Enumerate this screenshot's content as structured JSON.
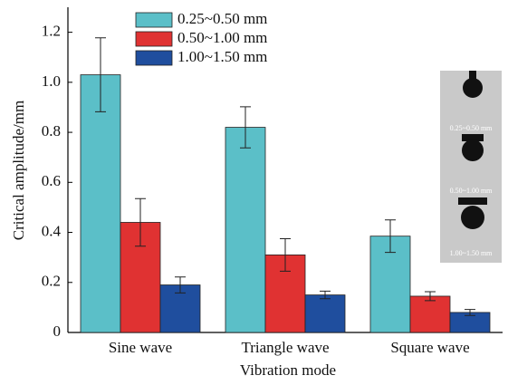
{
  "chart_data": {
    "type": "bar",
    "xlabel": "Vibration mode",
    "ylabel": "Critical amplitude/mm",
    "categories": [
      "Sine wave",
      "Triangle wave",
      "Square wave"
    ],
    "series": [
      {
        "name": "0.25~0.50 mm",
        "color": "#5bbfc8",
        "values": [
          1.03,
          0.82,
          0.385
        ],
        "errors": [
          0.148,
          0.082,
          0.065
        ]
      },
      {
        "name": "0.50~1.00 mm",
        "color": "#e03232",
        "values": [
          0.44,
          0.31,
          0.145
        ],
        "errors": [
          0.095,
          0.065,
          0.018
        ]
      },
      {
        "name": "1.00~1.50 mm",
        "color": "#1f4e9e",
        "values": [
          0.19,
          0.15,
          0.08
        ],
        "errors": [
          0.032,
          0.015,
          0.012
        ]
      }
    ],
    "ylim": [
      0,
      1.3
    ],
    "yticks": [
      0,
      0.2,
      0.4,
      0.6,
      0.8,
      {
        "value": 1.0,
        "label": "1.0"
      },
      1.2
    ],
    "legend": "upper-left",
    "inset_labels": [
      "0.25~0.50 mm",
      "0.50~1.00 mm",
      "1.00~1.50 mm"
    ]
  }
}
